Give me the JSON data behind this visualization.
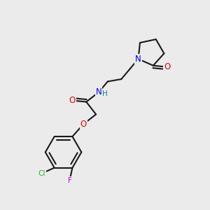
{
  "background_color": "#ebebeb",
  "bond_color": "#1a1a1a",
  "atom_colors": {
    "N": "#0000ee",
    "O": "#ee0000",
    "Cl": "#22bb22",
    "F": "#bb00bb",
    "H_amide": "#008888",
    "C": "#1a1a1a"
  },
  "figsize": [
    3.0,
    3.0
  ],
  "dpi": 100,
  "lw": 1.5,
  "ring_r": 26,
  "pyr_r": 20
}
